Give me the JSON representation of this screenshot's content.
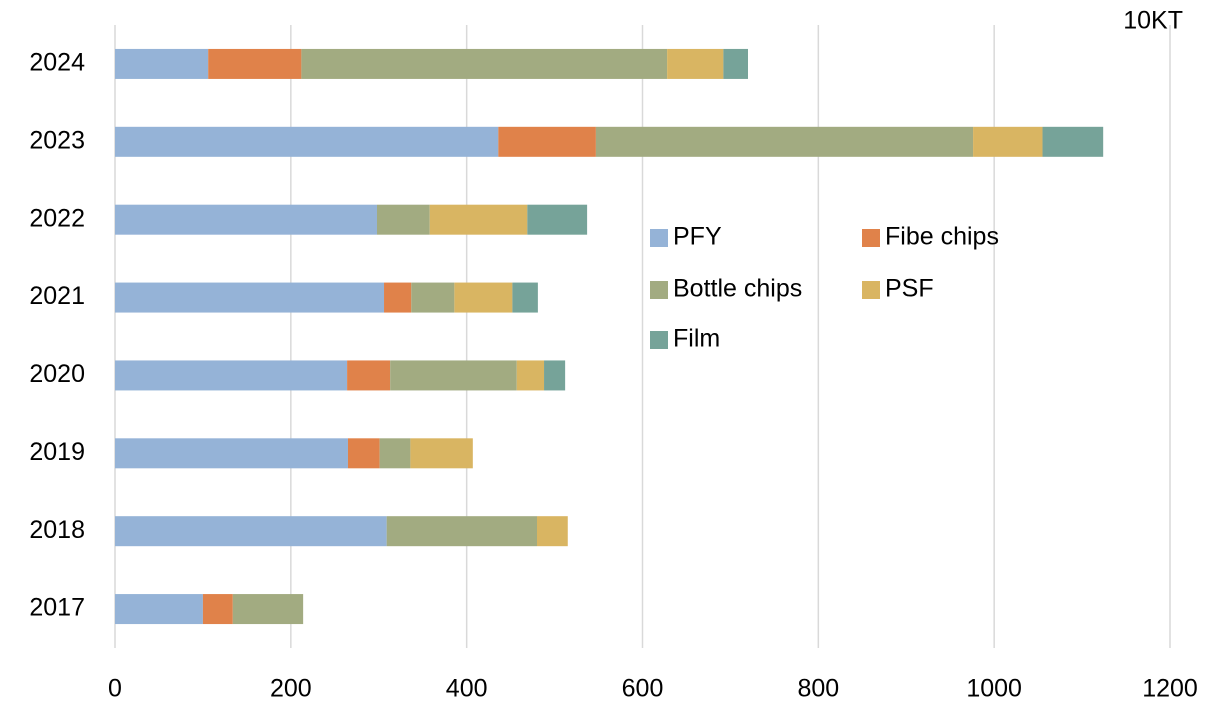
{
  "chart_data": {
    "type": "stacked_barh",
    "unit": "10KT",
    "categories": [
      "2024",
      "2023",
      "2022",
      "2021",
      "2020",
      "2019",
      "2018",
      "2017"
    ],
    "series": [
      {
        "name": "PFY",
        "color": "#95b3d7",
        "values": [
          106,
          436,
          298,
          306,
          264,
          265,
          309,
          100
        ]
      },
      {
        "name": "Fibe chips",
        "color": "#e0824a",
        "values": [
          106,
          111,
          0,
          31,
          49,
          36,
          0,
          34
        ]
      },
      {
        "name": "Bottle chips",
        "color": "#a2ab81",
        "values": [
          416,
          429,
          60,
          49,
          144,
          35,
          171,
          80
        ]
      },
      {
        "name": "PSF",
        "color": "#d9b562",
        "values": [
          64,
          79,
          111,
          66,
          31,
          71,
          35,
          0
        ]
      },
      {
        "name": "Film",
        "color": "#76a399",
        "values": [
          28,
          69,
          68,
          29,
          24,
          0,
          0,
          0
        ]
      }
    ],
    "xlim": [
      0,
      1200
    ],
    "xticks": [
      0,
      200,
      400,
      600,
      800,
      1000,
      1200
    ],
    "grid": true
  }
}
